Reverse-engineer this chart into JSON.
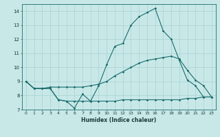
{
  "xlabel": "Humidex (Indice chaleur)",
  "bg_color": "#c8e8e8",
  "line_color": "#1a6b6b",
  "grid_color": "#a8d0d0",
  "xlim": [
    -0.5,
    23.5
  ],
  "ylim": [
    7.0,
    14.5
  ],
  "xticks": [
    0,
    1,
    2,
    3,
    4,
    5,
    6,
    7,
    8,
    9,
    10,
    11,
    12,
    13,
    14,
    15,
    16,
    17,
    18,
    19,
    20,
    21,
    22,
    23
  ],
  "yticks": [
    7,
    8,
    9,
    10,
    11,
    12,
    13,
    14
  ],
  "line1_x": [
    0,
    1,
    2,
    3,
    4,
    5,
    6,
    7,
    8,
    9,
    10,
    11,
    12,
    13,
    14,
    15,
    16,
    17,
    18,
    19,
    20,
    21,
    22,
    23
  ],
  "line1_y": [
    9.0,
    8.5,
    8.5,
    8.5,
    7.7,
    7.6,
    7.1,
    8.1,
    7.6,
    8.7,
    10.2,
    11.5,
    11.7,
    13.0,
    13.6,
    13.9,
    14.2,
    12.6,
    12.0,
    10.5,
    9.1,
    8.7,
    7.9,
    7.9
  ],
  "line2_x": [
    0,
    1,
    2,
    3,
    4,
    5,
    6,
    7,
    8,
    9,
    10,
    11,
    12,
    13,
    14,
    15,
    16,
    17,
    18,
    19,
    20,
    21,
    22,
    23
  ],
  "line2_y": [
    9.0,
    8.5,
    8.5,
    8.6,
    8.6,
    8.6,
    8.6,
    8.6,
    8.7,
    8.8,
    9.0,
    9.4,
    9.7,
    10.0,
    10.3,
    10.5,
    10.6,
    10.7,
    10.8,
    10.6,
    9.8,
    9.1,
    8.7,
    7.9
  ],
  "line3_x": [
    0,
    1,
    2,
    3,
    4,
    5,
    6,
    7,
    8,
    9,
    10,
    11,
    12,
    13,
    14,
    15,
    16,
    17,
    18,
    19,
    20,
    21,
    22,
    23
  ],
  "line3_y": [
    9.0,
    8.5,
    8.5,
    8.5,
    7.7,
    7.6,
    7.6,
    7.6,
    7.6,
    7.6,
    7.6,
    7.6,
    7.7,
    7.7,
    7.7,
    7.7,
    7.7,
    7.7,
    7.7,
    7.7,
    7.8,
    7.8,
    7.9,
    7.9
  ],
  "tick_fontsize": 4.5,
  "xlabel_fontsize": 5.5,
  "marker_size": 1.8,
  "linewidth": 0.8
}
